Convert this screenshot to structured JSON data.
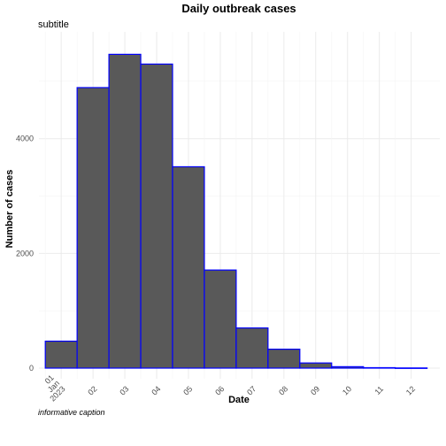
{
  "chart_data": {
    "type": "bar",
    "title": "Daily outbreak cases",
    "subtitle": "subtitle",
    "caption": "informative caption",
    "xlabel": "Date",
    "ylabel": "Number of cases",
    "ylim": [
      0,
      5800
    ],
    "y_ticks": [
      0,
      2000,
      4000
    ],
    "x_ticks": [
      "01\nJan\n2023",
      "02",
      "03",
      "04",
      "05",
      "06",
      "07",
      "08",
      "09",
      "10",
      "11",
      "12"
    ],
    "x_tick_positions": [
      1.5,
      2.5,
      3.5,
      4.5,
      5.5,
      6.5,
      7.5,
      8.5,
      9.5,
      10.5,
      11.5,
      12.5
    ],
    "xlim": [
      0.8,
      13.4
    ],
    "bins": [
      {
        "start": 1,
        "end": 2,
        "value": 470
      },
      {
        "start": 2,
        "end": 3,
        "value": 4890
      },
      {
        "start": 3,
        "end": 4,
        "value": 5470
      },
      {
        "start": 4,
        "end": 5,
        "value": 5300
      },
      {
        "start": 5,
        "end": 6,
        "value": 3510
      },
      {
        "start": 6,
        "end": 7,
        "value": 1710
      },
      {
        "start": 7,
        "end": 8,
        "value": 700
      },
      {
        "start": 8,
        "end": 9,
        "value": 330
      },
      {
        "start": 9,
        "end": 10,
        "value": 90
      },
      {
        "start": 10,
        "end": 11,
        "value": 25
      },
      {
        "start": 11,
        "end": 12,
        "value": 8
      },
      {
        "start": 12,
        "end": 13,
        "value": 3
      }
    ],
    "fill_color": "#595959",
    "outline_color": "#0000ff",
    "grid": true,
    "legend": "none"
  }
}
